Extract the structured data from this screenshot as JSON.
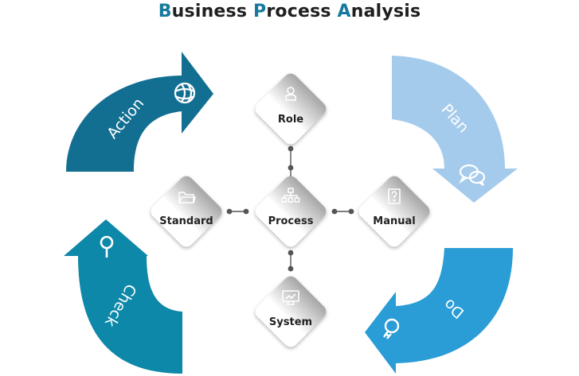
{
  "title": {
    "segments": [
      {
        "text": "B",
        "accent": true
      },
      {
        "text": "usiness ",
        "accent": false
      },
      {
        "text": "P",
        "accent": true
      },
      {
        "text": "rocess ",
        "accent": false
      },
      {
        "text": "A",
        "accent": true
      },
      {
        "text": "nalysis",
        "accent": false
      }
    ]
  },
  "cycle": [
    {
      "id": "action",
      "label": "Action",
      "icon": "globe-icon",
      "color": "#136f91"
    },
    {
      "id": "plan",
      "label": "Plan",
      "icon": "speech-bubbles-icon",
      "color": "#a5cbec"
    },
    {
      "id": "do",
      "label": "Do",
      "icon": "lightbulb-icon",
      "color": "#2a9cd6"
    },
    {
      "id": "check",
      "label": "Check",
      "icon": "magnifier-icon",
      "color": "#0d88a8"
    }
  ],
  "nodes": [
    {
      "id": "role",
      "label": "Role",
      "icon": "person-icon"
    },
    {
      "id": "standard",
      "label": "Standard",
      "icon": "folder-icon"
    },
    {
      "id": "process",
      "label": "Process",
      "icon": "hierarchy-icon"
    },
    {
      "id": "manual",
      "label": "Manual",
      "icon": "question-book-icon"
    },
    {
      "id": "system",
      "label": "System",
      "icon": "monitor-icon"
    }
  ],
  "colors": {
    "accent": "#17799b",
    "connector": "#555555",
    "node_gradient_top": "#a8a8a8",
    "node_gradient_bottom": "#ffffff"
  }
}
